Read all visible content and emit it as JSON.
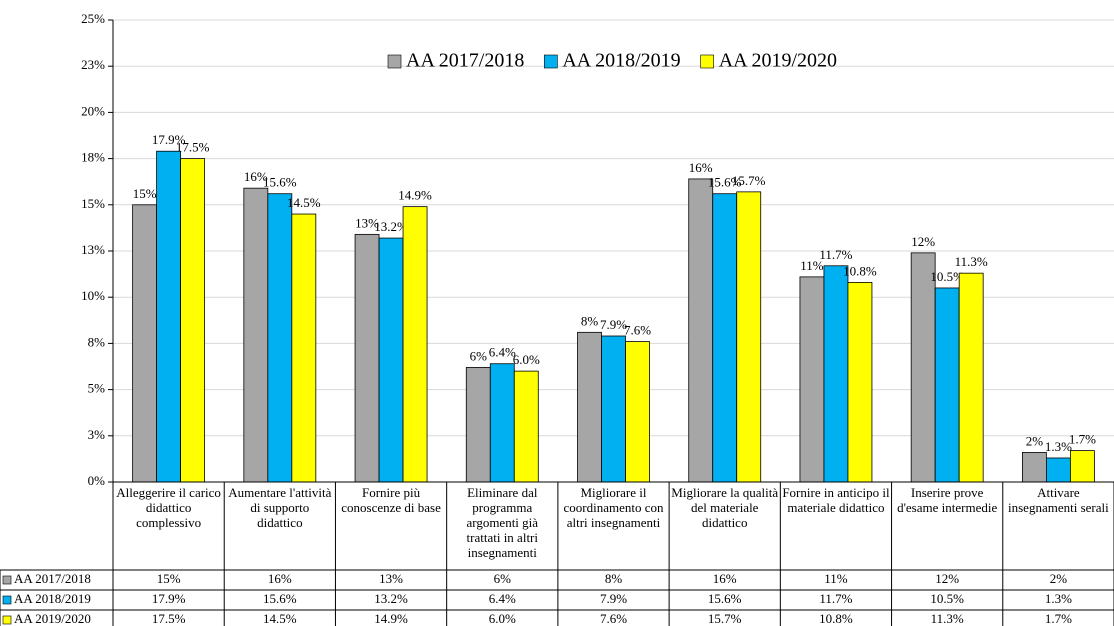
{
  "chart_data": {
    "type": "bar",
    "categories": [
      "Alleggerire il carico didattico complessivo",
      "Aumentare l'attività di supporto didattico",
      "Fornire più conoscenze di base",
      "Eliminare dal programma argomenti già trattati in altri insegnamenti",
      "Migliorare il coordinamento con altri insegnamenti",
      "Migliorare la qualità del materiale didattico",
      "Fornire in anticipo il materiale didattico",
      "Inserire prove d'esame intermedie",
      "Attivare insegnamenti serali"
    ],
    "series": [
      {
        "name": "AA 2017/2018",
        "color": "#a6a6a6",
        "values": [
          15.0,
          15.9,
          13.4,
          6.2,
          8.1,
          16.4,
          11.1,
          12.4,
          1.6
        ],
        "value_labels": [
          "15%",
          "16%",
          "13%",
          "6%",
          "8%",
          "16%",
          "11%",
          "12%",
          "2%"
        ]
      },
      {
        "name": "AA 2018/2019",
        "color": "#00b0f0",
        "values": [
          17.9,
          15.6,
          13.2,
          6.4,
          7.9,
          15.6,
          11.7,
          10.5,
          1.3
        ],
        "value_labels": [
          "17.9%",
          "15.6%",
          "13.2%",
          "6.4%",
          "7.9%",
          "15.6%",
          "11.7%",
          "10.5%",
          "1.3%"
        ]
      },
      {
        "name": "AA 2019/2020",
        "color": "#ffff00",
        "values": [
          17.5,
          14.5,
          14.9,
          6.0,
          7.6,
          15.7,
          10.8,
          11.3,
          1.7
        ],
        "value_labels": [
          "17.5%",
          "14.5%",
          "14.9%",
          "6.0%",
          "7.6%",
          "15.7%",
          "10.8%",
          "11.3%",
          "1.7%"
        ]
      }
    ],
    "ylim": [
      0,
      25
    ],
    "yticks": [
      {
        "value": 0,
        "label": "0%"
      },
      {
        "value": 2.5,
        "label": "3%"
      },
      {
        "value": 5,
        "label": "5%"
      },
      {
        "value": 7.5,
        "label": "8%"
      },
      {
        "value": 10,
        "label": "10%"
      },
      {
        "value": 12.5,
        "label": "13%"
      },
      {
        "value": 15,
        "label": "15%"
      },
      {
        "value": 17.5,
        "label": "18%"
      },
      {
        "value": 20,
        "label": "20%"
      },
      {
        "value": 22.5,
        "label": "23%"
      },
      {
        "value": 25,
        "label": "25%"
      }
    ],
    "grid": true,
    "legend": "top"
  }
}
